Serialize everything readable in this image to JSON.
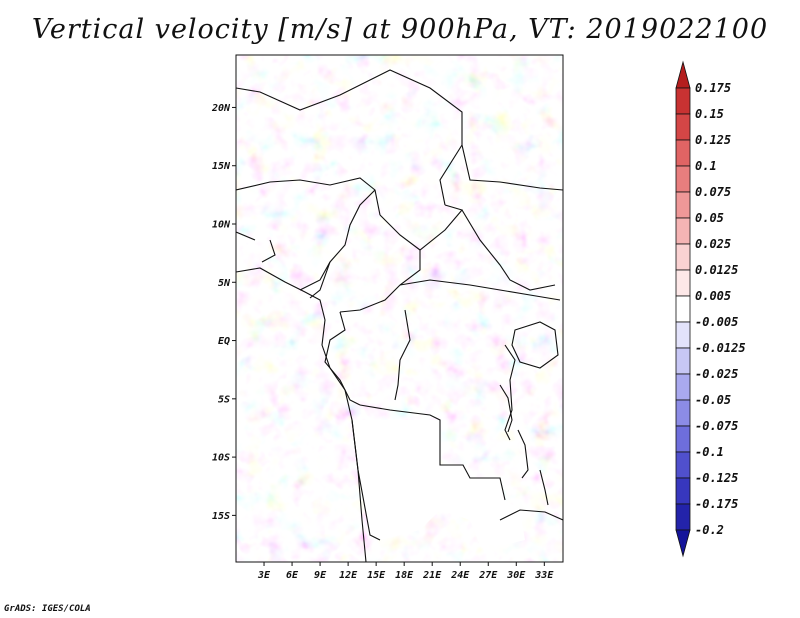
{
  "title": "Vertical velocity [m/s] at 900hPa, VT: 2019022100",
  "credit": "GrADS: IGES/COLA",
  "map": {
    "lat_labels": [
      "20N",
      "15N",
      "10N",
      "5N",
      "EQ",
      "5S",
      "10S",
      "15S"
    ],
    "lat_values": [
      20,
      15,
      10,
      5,
      0,
      -5,
      -10,
      -15
    ],
    "lon_labels": [
      "3E",
      "6E",
      "9E",
      "12E",
      "15E",
      "18E",
      "21E",
      "24E",
      "27E",
      "30E",
      "33E"
    ],
    "lon_values": [
      3,
      6,
      9,
      12,
      15,
      18,
      21,
      24,
      27,
      30,
      33
    ],
    "lon_range": [
      0,
      35
    ],
    "lat_range": [
      -19,
      24.5
    ]
  },
  "colorbar": {
    "labels": [
      "0.175",
      "0.15",
      "0.125",
      "0.1",
      "0.075",
      "0.05",
      "0.025",
      "0.0125",
      "0.005",
      "-0.005",
      "-0.0125",
      "-0.025",
      "-0.05",
      "-0.075",
      "-0.1",
      "-0.125",
      "-0.175",
      "-0.2"
    ],
    "colors": [
      "#b41e1e",
      "#c83232",
      "#d44646",
      "#e06464",
      "#e87e7e",
      "#ef9898",
      "#f5b4b4",
      "#fad2d2",
      "#fde8e8",
      "#ffffff",
      "#e3e3fb",
      "#c7c7f5",
      "#a9a9ef",
      "#8c8ce6",
      "#6e6edc",
      "#5050cd",
      "#3737be",
      "#2323aa",
      "#14149a"
    ]
  }
}
